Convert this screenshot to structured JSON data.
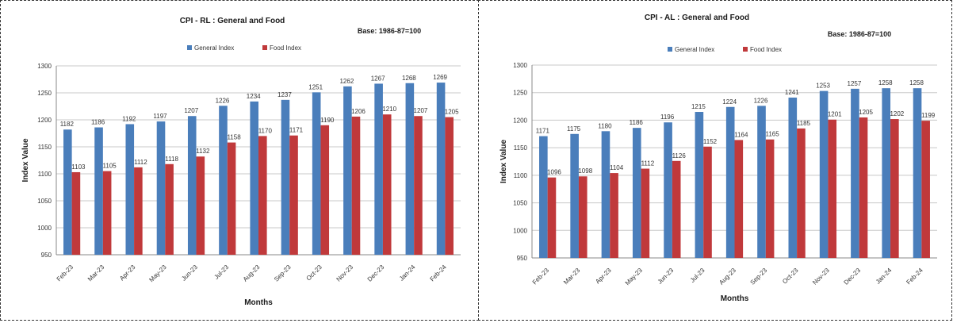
{
  "chart_data": [
    {
      "type": "bar",
      "title": "CPI - RL : General and Food",
      "subtitle": "Base: 1986-87=100",
      "xlabel": "Months",
      "ylabel": "Index Value",
      "ylim": [
        950,
        1300
      ],
      "yticks": [
        950,
        1000,
        1050,
        1100,
        1150,
        1200,
        1250,
        1300
      ],
      "grid": true,
      "legend": "top-center",
      "categories": [
        "Feb-23",
        "Mar-23",
        "Apr-23",
        "May-23",
        "Jun-23",
        "Jul-23",
        "Aug-23",
        "Sep-23",
        "Oct-23",
        "Nov-23",
        "Dec-23",
        "Jan-24",
        "Feb-24"
      ],
      "series": [
        {
          "name": "General Index",
          "color": "#4a7ebb",
          "values": [
            1182,
            1186,
            1192,
            1197,
            1207,
            1226,
            1234,
            1237,
            1251,
            1262,
            1267,
            1268,
            1269
          ]
        },
        {
          "name": "Food Index",
          "color": "#c0393b",
          "values": [
            1103,
            1105,
            1112,
            1118,
            1132,
            1158,
            1170,
            1171,
            1190,
            1206,
            1210,
            1207,
            1205
          ]
        }
      ]
    },
    {
      "type": "bar",
      "title": "CPI - AL : General and Food",
      "subtitle": "Base: 1986-87=100",
      "xlabel": "Months",
      "ylabel": "Index Value",
      "ylim": [
        950,
        1300
      ],
      "yticks": [
        950,
        1000,
        1050,
        1100,
        1150,
        1200,
        1250,
        1300
      ],
      "grid": true,
      "legend": "top-center",
      "categories": [
        "Feb-23",
        "Mar-23",
        "Apr-23",
        "May-23",
        "Jun-23",
        "Jul-23",
        "Aug-23",
        "Sep-23",
        "Oct-23",
        "Nov-23",
        "Dec-23",
        "Jan-24",
        "Feb-24"
      ],
      "series": [
        {
          "name": "General Index",
          "color": "#4a7ebb",
          "values": [
            1171,
            1175,
            1180,
            1186,
            1196,
            1215,
            1224,
            1226,
            1241,
            1253,
            1257,
            1258,
            1258
          ]
        },
        {
          "name": "Food Index",
          "color": "#c0393b",
          "values": [
            1096,
            1098,
            1104,
            1112,
            1126,
            1152,
            1164,
            1165,
            1185,
            1201,
            1205,
            1202,
            1199
          ]
        }
      ]
    }
  ]
}
